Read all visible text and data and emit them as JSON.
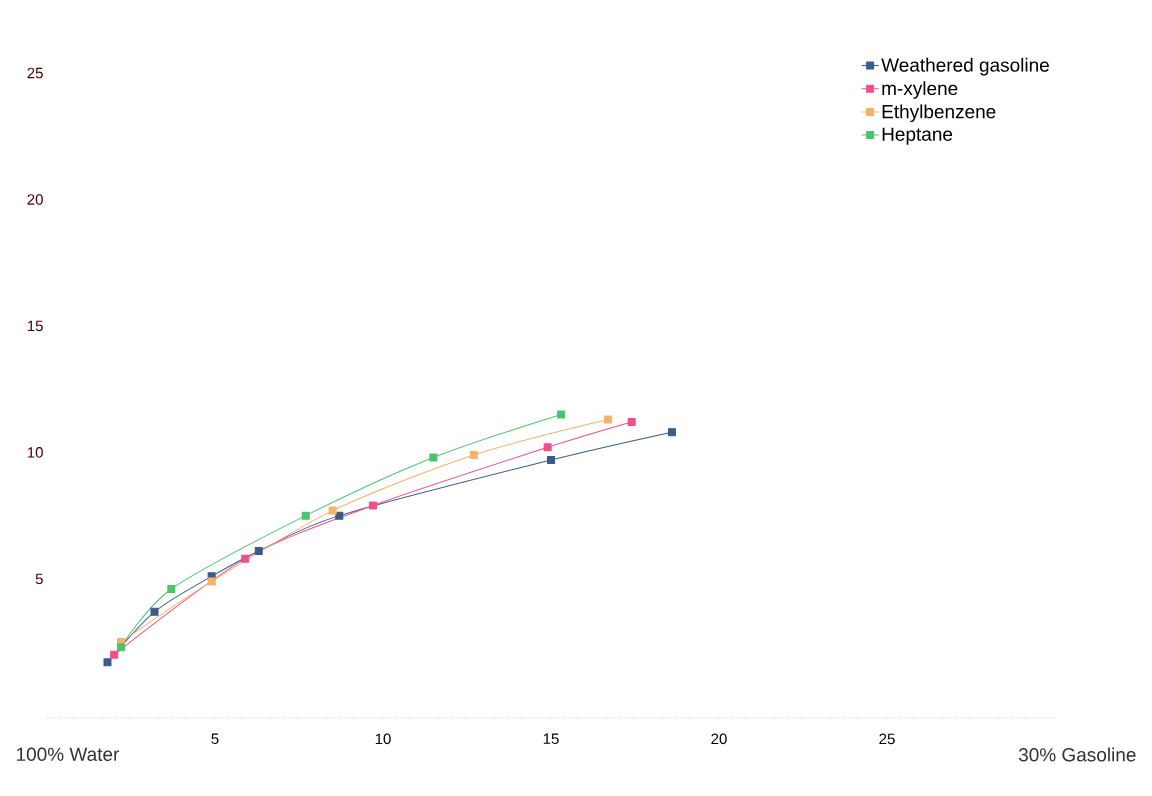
{
  "chart_data": {
    "type": "line",
    "marker": "square",
    "legend": "top right",
    "grid": false,
    "xlim": [
      0,
      30
    ],
    "xticks": [
      5,
      10,
      15,
      20,
      25
    ],
    "annotations": [
      "100% Water",
      "30% Gasoline"
    ],
    "ylim": [
      -0.5,
      25
    ],
    "yticks": [
      5,
      10,
      15,
      20,
      25
    ],
    "series": [
      {
        "name": "Weathered gasoline",
        "color": "#3b5b8c",
        "x": [
          1.8,
          3.2,
          4.9,
          6.3,
          8.7,
          15.0,
          18.6
        ],
        "values": [
          1.7,
          3.7,
          5.1,
          6.1,
          7.5,
          9.7,
          10.8
        ]
      },
      {
        "name": "m-xylene",
        "color": "#f0508a",
        "x": [
          2.0,
          5.9,
          9.7,
          14.9,
          17.4
        ],
        "values": [
          2.0,
          5.8,
          7.9,
          10.2,
          11.2
        ]
      },
      {
        "name": "Ethylbenzene",
        "color": "#f5b26b",
        "x": [
          2.2,
          4.9,
          8.5,
          12.7,
          16.7
        ],
        "values": [
          2.5,
          4.9,
          7.7,
          9.9,
          11.3
        ]
      },
      {
        "name": "Heptane",
        "color": "#4cc46e",
        "x": [
          2.2,
          3.7,
          7.7,
          11.5,
          15.3
        ],
        "values": [
          2.3,
          4.6,
          7.5,
          9.8,
          11.5
        ]
      }
    ]
  }
}
